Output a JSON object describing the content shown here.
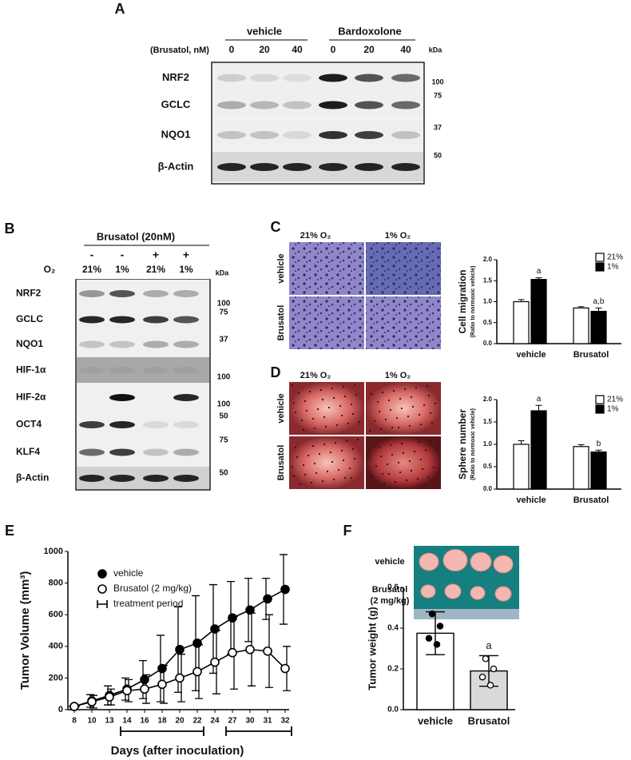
{
  "panel_labels": [
    "A",
    "B",
    "C",
    "D",
    "E",
    "F"
  ],
  "blot_a": {
    "groups": [
      "vehicle",
      "Bardoxolone"
    ],
    "dose_label": "(Brusatol, nM)",
    "lanes": [
      0,
      20,
      40,
      0,
      20,
      40
    ],
    "kda_label": "kDa",
    "rows": [
      "NRF2",
      "GCLC",
      "NQO1",
      "β-Actin"
    ],
    "markers": [
      100,
      75,
      37,
      50
    ]
  },
  "blot_b": {
    "title": "Brusatol (20nM)",
    "treatment": [
      "-",
      "-",
      "+",
      "+"
    ],
    "o2_label": "O₂",
    "o2": [
      "21%",
      "1%",
      "21%",
      "1%"
    ],
    "kda_label": "kDa",
    "rows": [
      "NRF2",
      "GCLC",
      "NQO1",
      "HIF-1α",
      "HIF-2α",
      "OCT4",
      "KLF4",
      "β-Actin"
    ],
    "markers": [
      100,
      75,
      37,
      100,
      100,
      50,
      75,
      50
    ]
  },
  "images_c": {
    "columns": [
      "21% O₂",
      "1% O₂"
    ],
    "rows": [
      "vehicle",
      "Brusatol"
    ]
  },
  "images_d": {
    "columns": [
      "21% O₂",
      "1% O₂"
    ],
    "rows": [
      "vehicle",
      "Brusatol"
    ]
  },
  "photo_f": {
    "labels": [
      "vehicle",
      "Brusatol",
      "(2 mg/kg)"
    ]
  },
  "chart_data": [
    {
      "type": "bar",
      "ylabel": "Cell migration",
      "ylabel_note": "(Ratio to normoxic vehicle)",
      "categories": [
        "vehicle",
        "Brusatol"
      ],
      "series": [
        {
          "name": "21%",
          "color": "#ffffff",
          "values": [
            1.0,
            0.85
          ],
          "errors": [
            0.05,
            0.03
          ],
          "annotations": [
            null,
            null
          ]
        },
        {
          "name": "1%",
          "color": "#000000",
          "values": [
            1.53,
            0.77
          ],
          "errors": [
            0.04,
            0.08
          ],
          "annotations": [
            "a",
            "a,b"
          ]
        }
      ],
      "ylim": [
        0,
        2
      ],
      "yticks": [
        {
          "value": 0,
          "label": "0.0"
        },
        {
          "value": 0.5,
          "label": "0.5"
        },
        {
          "value": 1,
          "label": "1.0"
        },
        {
          "value": 1.5,
          "label": "1.5"
        },
        {
          "value": 2,
          "label": "2.0"
        }
      ]
    },
    {
      "type": "bar",
      "ylabel": "Sphere number",
      "ylabel_note": "(Ratio to normoxic vehicle)",
      "categories": [
        "vehicle",
        "Brusatol"
      ],
      "series": [
        {
          "name": "21%",
          "color": "#ffffff",
          "values": [
            1.0,
            0.95
          ],
          "errors": [
            0.08,
            0.04
          ],
          "annotations": [
            null,
            null
          ]
        },
        {
          "name": "1%",
          "color": "#000000",
          "values": [
            1.75,
            0.83
          ],
          "errors": [
            0.12,
            0.04
          ],
          "annotations": [
            "a",
            "b"
          ]
        }
      ],
      "ylim": [
        0,
        2
      ],
      "yticks": [
        {
          "value": 0,
          "label": "0.0"
        },
        {
          "value": 0.5,
          "label": "0.5"
        },
        {
          "value": 1,
          "label": "1.0"
        },
        {
          "value": 1.5,
          "label": "1.5"
        },
        {
          "value": 2,
          "label": "2.0"
        }
      ]
    },
    {
      "type": "line",
      "ylabel": "Tumor Volume (mm³)",
      "xlabel": "Days (after inoculation)",
      "categories": [
        "8",
        "10",
        "13",
        "14",
        "16",
        "18",
        "20",
        "22",
        "24",
        "27",
        "30",
        "31",
        "32"
      ],
      "series": [
        {
          "name": "vehicle",
          "color": "#000000",
          "values": [
            20,
            55,
            90,
            130,
            190,
            260,
            380,
            420,
            510,
            580,
            630,
            700,
            760
          ],
          "errors": [
            0,
            40,
            60,
            70,
            120,
            210,
            270,
            300,
            280,
            230,
            200,
            130,
            220
          ]
        },
        {
          "name": "Brusatol (2 mg/kg)",
          "color": "#ffffff",
          "values": [
            20,
            50,
            80,
            120,
            130,
            160,
            200,
            240,
            300,
            360,
            380,
            370,
            260
          ],
          "errors": [
            0,
            40,
            50,
            70,
            90,
            120,
            150,
            170,
            200,
            230,
            230,
            230,
            140
          ]
        }
      ],
      "treatment_period": {
        "name": "treatment period",
        "ranges": [
          [
            "14",
            "22"
          ],
          [
            "27",
            "32"
          ]
        ]
      },
      "ylim": [
        0,
        1000
      ],
      "yticks": [
        0,
        200,
        400,
        600,
        800,
        1000
      ]
    },
    {
      "type": "bar",
      "ylabel": "Tumor weight (g)",
      "categories": [
        "vehicle",
        "Brusatol"
      ],
      "values": [
        0.375,
        0.19
      ],
      "errors": [
        0.105,
        0.075
      ],
      "colors": [
        "#ffffff",
        "#d9d9d9"
      ],
      "points": [
        [
          0.47,
          0.41,
          0.35,
          0.32
        ],
        [
          0.25,
          0.2,
          0.16,
          0.12
        ]
      ],
      "annotations": [
        null,
        "a"
      ],
      "ylim": [
        0,
        0.6
      ],
      "yticks": [
        {
          "value": 0,
          "label": "0.0"
        },
        {
          "value": 0.2,
          "label": "0.2"
        },
        {
          "value": 0.4,
          "label": "0.4"
        },
        {
          "value": 0.6,
          "label": "0.6"
        }
      ]
    }
  ]
}
